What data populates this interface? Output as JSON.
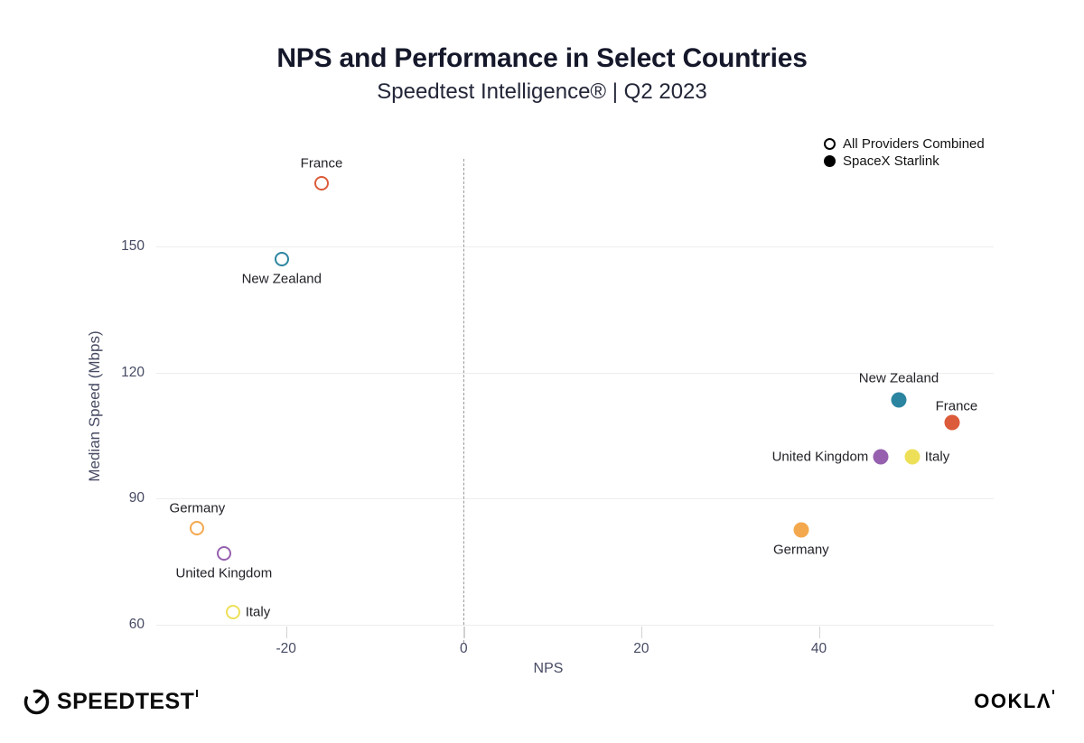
{
  "header": {
    "title": "NPS and Performance in Select Countries",
    "subtitle": "Speedtest Intelligence® | Q2 2023"
  },
  "legend": {
    "items": [
      {
        "label": "All Providers Combined",
        "marker": "open"
      },
      {
        "label": "SpaceX Starlink",
        "marker": "filled"
      }
    ]
  },
  "footer": {
    "speedtest_logo_text": "SPEEDTEST",
    "ookla_logo_text": "OOKLΛ"
  },
  "chart_data": {
    "type": "scatter",
    "title": "NPS and Performance in Select Countries",
    "subtitle": "Speedtest Intelligence® | Q2 2023",
    "xlabel": "NPS",
    "ylabel": "Median Speed (Mbps)",
    "xlim": [
      -35,
      60
    ],
    "ylim": [
      56,
      172
    ],
    "x_ticks": [
      -20,
      0,
      20,
      40
    ],
    "y_ticks": [
      60,
      90,
      120,
      150
    ],
    "grid": "horizontal-only",
    "zero_reference_line": true,
    "legend_position": "top-right",
    "colors": {
      "France": "#dc5b3a",
      "New Zealand": "#2c85a0",
      "Germany": "#f4a84e",
      "United Kingdom": "#9660af",
      "Italy": "#ede058"
    },
    "series": [
      {
        "name": "All Providers Combined",
        "marker": "open",
        "points": [
          {
            "country": "France",
            "nps": -16,
            "speed": 165,
            "label_pos": "above"
          },
          {
            "country": "New Zealand",
            "nps": -20.5,
            "speed": 147,
            "label_pos": "below"
          },
          {
            "country": "Germany",
            "nps": -30,
            "speed": 83,
            "label_pos": "above"
          },
          {
            "country": "United Kingdom",
            "nps": -27,
            "speed": 77,
            "label_pos": "below"
          },
          {
            "country": "Italy",
            "nps": -26,
            "speed": 63,
            "label_pos": "right"
          }
        ]
      },
      {
        "name": "SpaceX Starlink",
        "marker": "filled",
        "points": [
          {
            "country": "New Zealand",
            "nps": 49,
            "speed": 113.5,
            "label_pos": "above",
            "ldy": -24
          },
          {
            "country": "France",
            "nps": 55,
            "speed": 108,
            "label_pos": "above",
            "ldx": 5,
            "ldy": -18
          },
          {
            "country": "United Kingdom",
            "nps": 47,
            "speed": 100,
            "label_pos": "left"
          },
          {
            "country": "Italy",
            "nps": 50.5,
            "speed": 100,
            "label_pos": "right"
          },
          {
            "country": "Germany",
            "nps": 38,
            "speed": 82.5,
            "label_pos": "below"
          }
        ]
      }
    ]
  }
}
